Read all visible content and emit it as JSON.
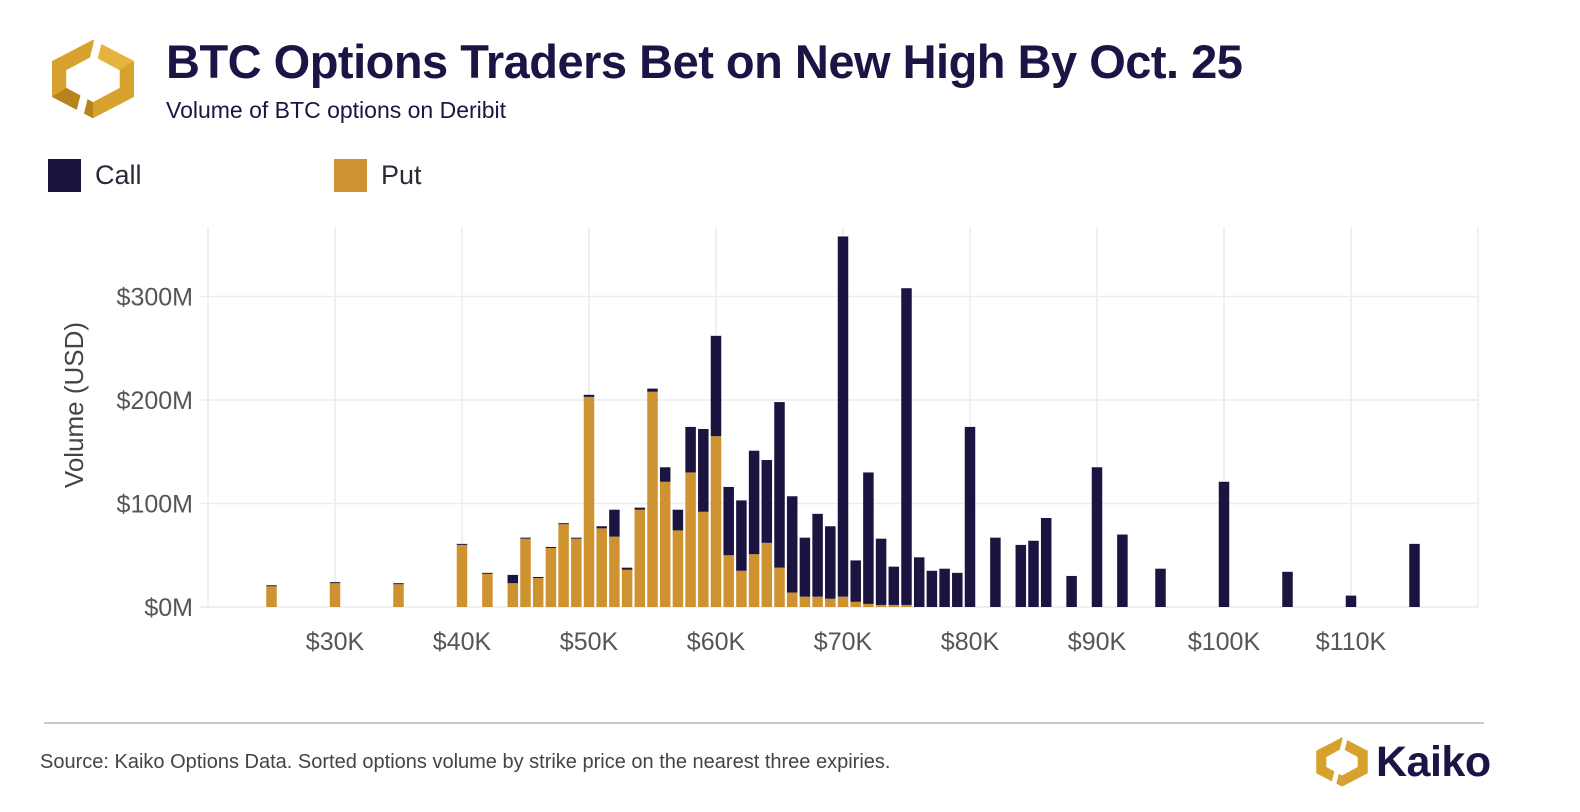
{
  "header": {
    "title": "BTC Options Traders Bet on New High By Oct. 25",
    "subtitle": "Volume of BTC options on Deribit"
  },
  "footer": {
    "source": "Source: Kaiko Options Data. Sorted options volume by strike price on the nearest three expiries.",
    "brand": "Kaiko"
  },
  "colors": {
    "call": "#1b1340",
    "put": "#cf9230",
    "logo_gold": "#d7a12e",
    "grid": "#ececec"
  },
  "icons": {
    "logo": "kaiko-logo-icon"
  },
  "chart_data": {
    "type": "bar",
    "stacked": true,
    "title": "BTC Options Traders Bet on New High By Oct. 25",
    "subtitle": "Volume of BTC options on Deribit",
    "xlabel": "",
    "ylabel": "Volume (USD)",
    "x_unit": "strike (USD thousands)",
    "xlim": [
      20,
      120
    ],
    "ylim": [
      0,
      350
    ],
    "y_ticks": [
      0,
      100,
      200,
      300
    ],
    "y_tick_labels": [
      "$0M",
      "$100M",
      "$200M",
      "$300M"
    ],
    "x_ticks": [
      30,
      40,
      50,
      60,
      70,
      80,
      90,
      100,
      110
    ],
    "x_tick_labels": [
      "$30K",
      "$40K",
      "$50K",
      "$60K",
      "$70K",
      "$80K",
      "$90K",
      "$100K",
      "$110K"
    ],
    "grid": true,
    "legend": "top-left",
    "series": [
      {
        "name": "Call",
        "color": "#1b1340",
        "points": [
          [
            25,
            1
          ],
          [
            30,
            1
          ],
          [
            35,
            1
          ],
          [
            40,
            1
          ],
          [
            42,
            1
          ],
          [
            44,
            8
          ],
          [
            45,
            1
          ],
          [
            46,
            1
          ],
          [
            47,
            1
          ],
          [
            48,
            1
          ],
          [
            49,
            1
          ],
          [
            50,
            2
          ],
          [
            51,
            2
          ],
          [
            52,
            26
          ],
          [
            53,
            2
          ],
          [
            54,
            2
          ],
          [
            55,
            3
          ],
          [
            56,
            14
          ],
          [
            57,
            20
          ],
          [
            58,
            44
          ],
          [
            59,
            80
          ],
          [
            60,
            97
          ],
          [
            61,
            66
          ],
          [
            62,
            68
          ],
          [
            63,
            100
          ],
          [
            64,
            80
          ],
          [
            65,
            160
          ],
          [
            66,
            93
          ],
          [
            67,
            57
          ],
          [
            68,
            80
          ],
          [
            69,
            70
          ],
          [
            70,
            348
          ],
          [
            71,
            40
          ],
          [
            72,
            127
          ],
          [
            73,
            64
          ],
          [
            74,
            37
          ],
          [
            75,
            306
          ],
          [
            76,
            48
          ],
          [
            77,
            35
          ],
          [
            78,
            37
          ],
          [
            79,
            33
          ],
          [
            80,
            174
          ],
          [
            82,
            67
          ],
          [
            84,
            60
          ],
          [
            85,
            64
          ],
          [
            86,
            86
          ],
          [
            88,
            30
          ],
          [
            90,
            135
          ],
          [
            92,
            70
          ],
          [
            95,
            37
          ],
          [
            100,
            121
          ],
          [
            105,
            34
          ],
          [
            110,
            11
          ],
          [
            115,
            61
          ]
        ]
      },
      {
        "name": "Put",
        "color": "#cf9230",
        "points": [
          [
            25,
            20
          ],
          [
            30,
            23
          ],
          [
            35,
            22
          ],
          [
            40,
            60
          ],
          [
            42,
            32
          ],
          [
            44,
            23
          ],
          [
            45,
            66
          ],
          [
            46,
            28
          ],
          [
            47,
            57
          ],
          [
            48,
            80
          ],
          [
            49,
            66
          ],
          [
            50,
            203
          ],
          [
            51,
            76
          ],
          [
            52,
            68
          ],
          [
            53,
            36
          ],
          [
            54,
            94
          ],
          [
            55,
            208
          ],
          [
            56,
            121
          ],
          [
            57,
            74
          ],
          [
            58,
            130
          ],
          [
            59,
            92
          ],
          [
            60,
            165
          ],
          [
            61,
            50
          ],
          [
            62,
            35
          ],
          [
            63,
            51
          ],
          [
            64,
            62
          ],
          [
            65,
            38
          ],
          [
            66,
            14
          ],
          [
            67,
            10
          ],
          [
            68,
            10
          ],
          [
            69,
            8
          ],
          [
            70,
            10
          ],
          [
            71,
            5
          ],
          [
            72,
            3
          ],
          [
            73,
            2
          ],
          [
            74,
            2
          ],
          [
            75,
            2
          ],
          [
            76,
            0
          ],
          [
            77,
            0
          ],
          [
            78,
            0
          ],
          [
            79,
            0
          ],
          [
            80,
            0
          ],
          [
            82,
            0
          ],
          [
            84,
            0
          ],
          [
            85,
            0
          ],
          [
            86,
            0
          ],
          [
            88,
            0
          ],
          [
            90,
            0
          ],
          [
            92,
            0
          ],
          [
            95,
            0
          ],
          [
            100,
            0
          ],
          [
            105,
            0
          ],
          [
            110,
            0
          ],
          [
            115,
            0
          ]
        ]
      }
    ]
  }
}
